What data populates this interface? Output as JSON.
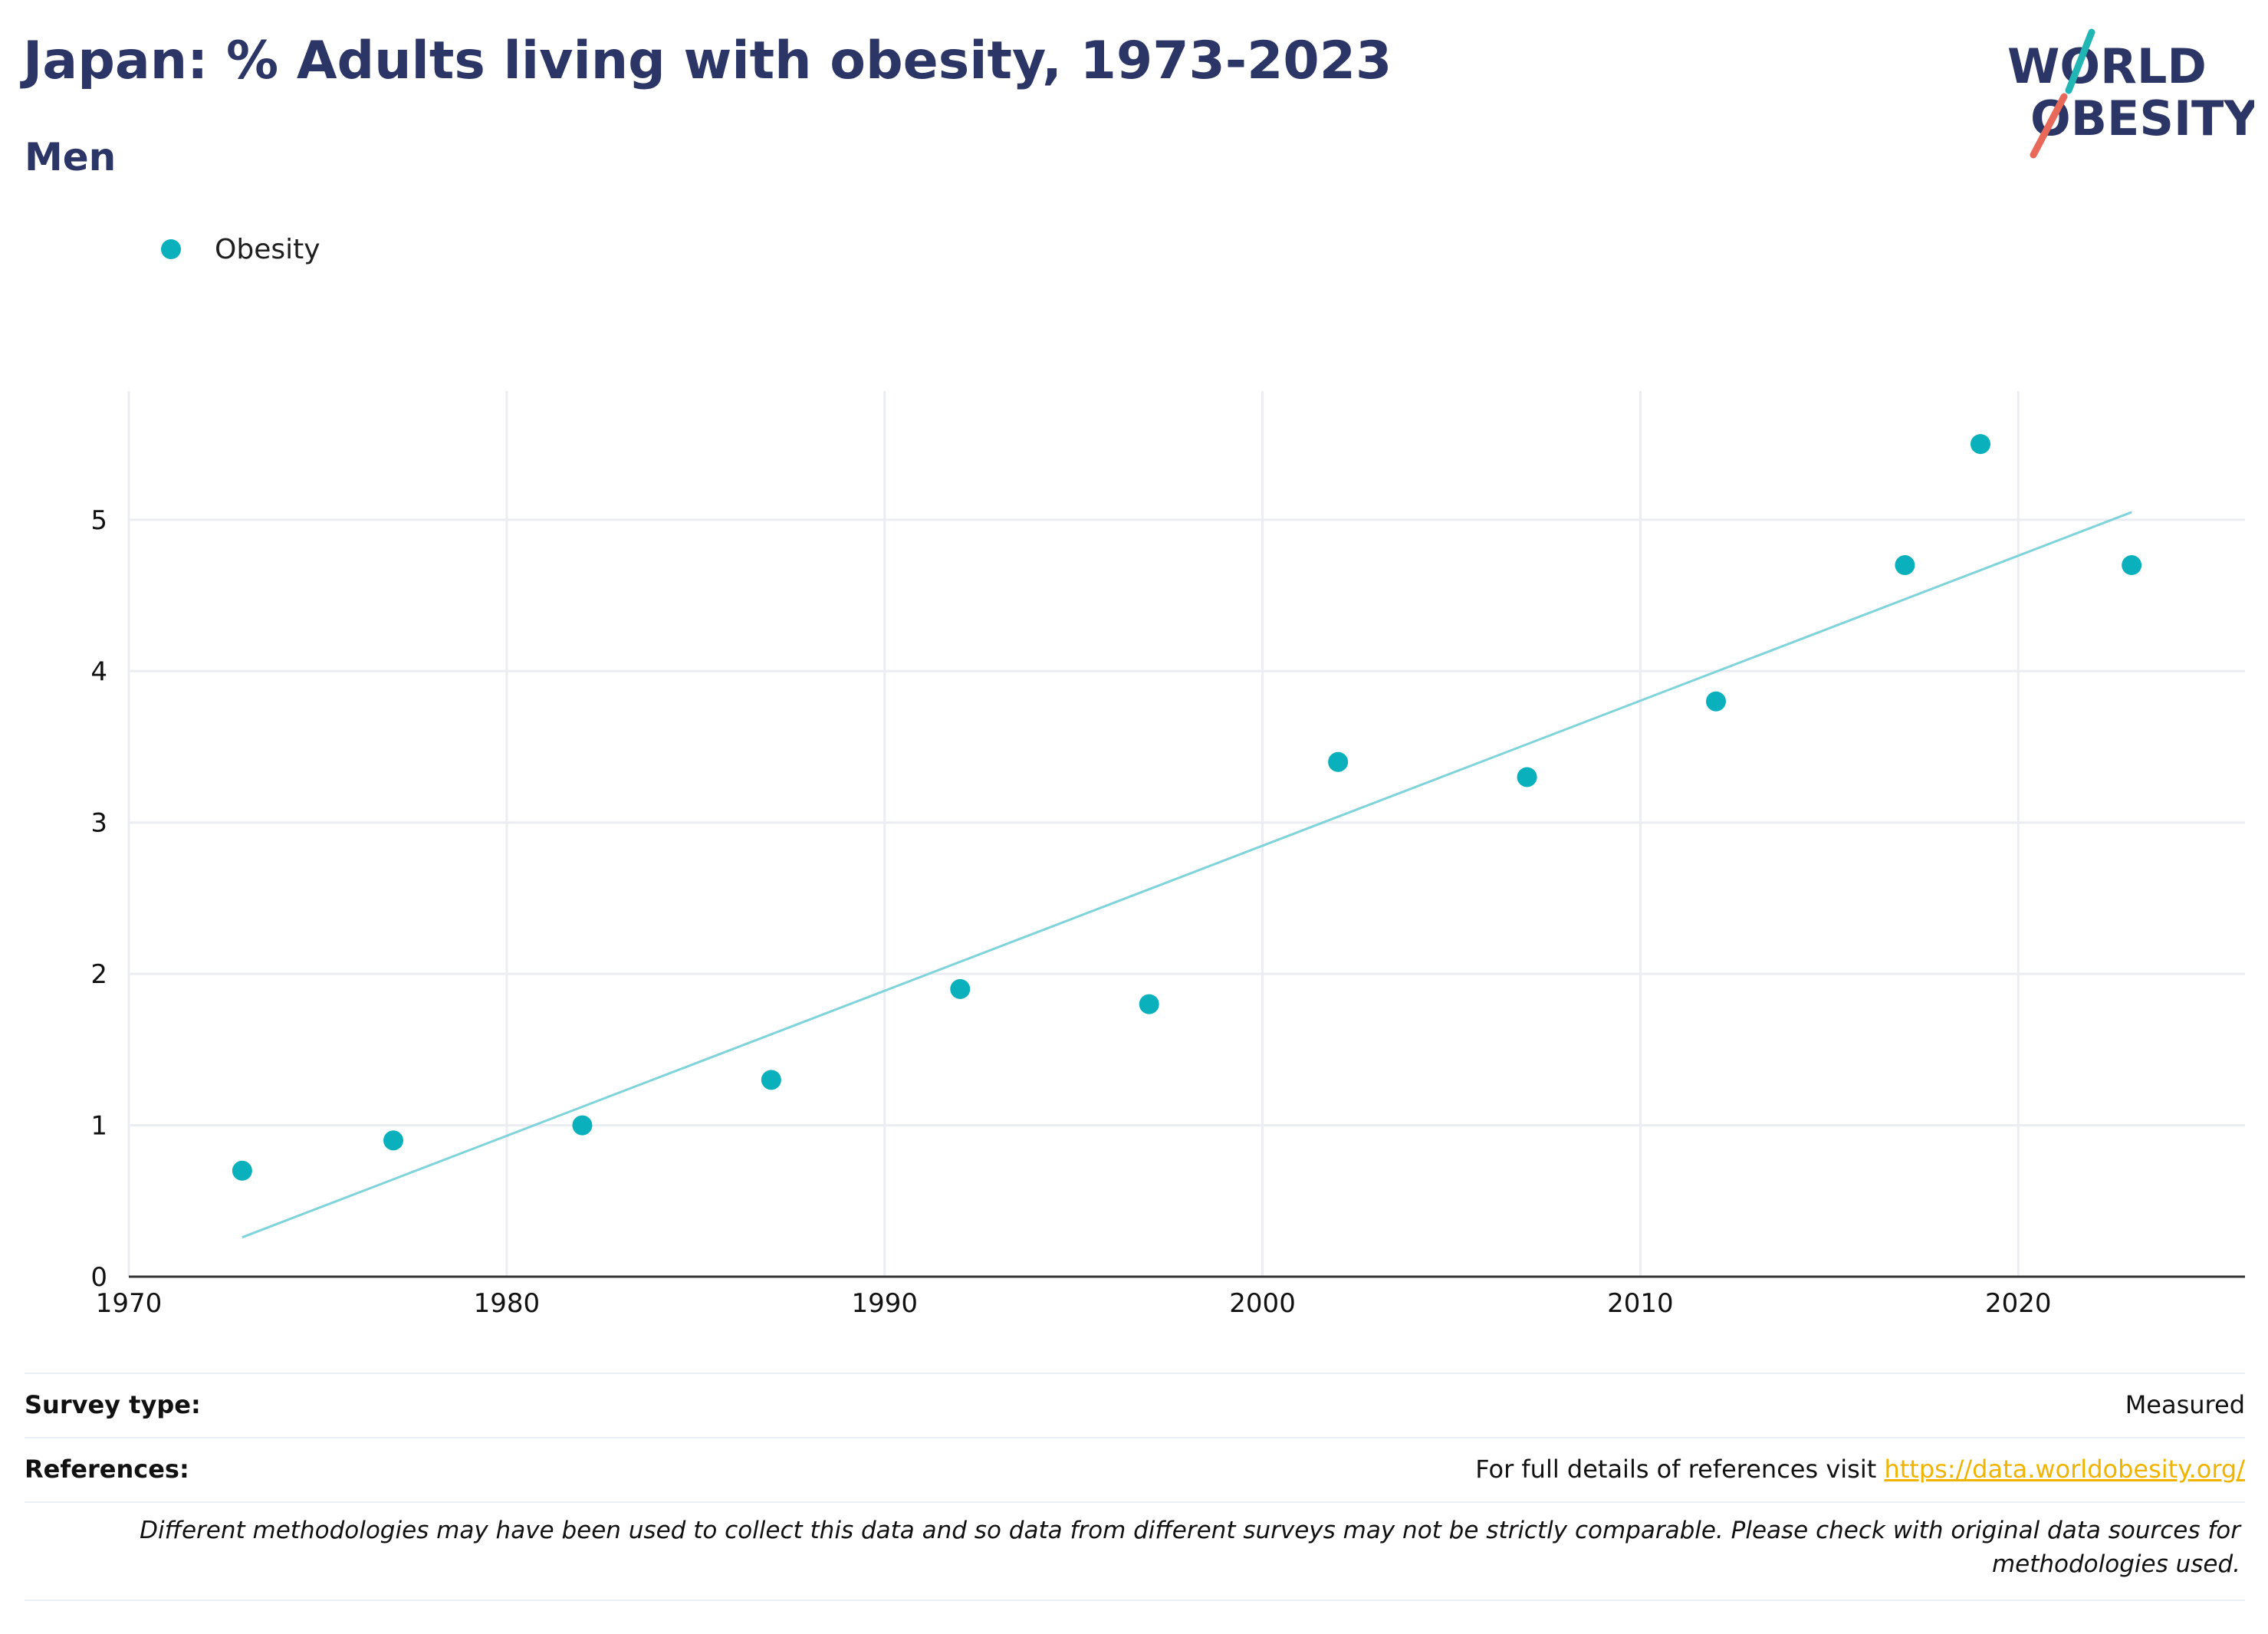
{
  "header": {
    "title": "Japan: % Adults living with obesity, 1973-2023",
    "subtitle": "Men"
  },
  "logo": {
    "line1": "WORLD",
    "line2": "OBESITY",
    "colors": {
      "text": "#2b3566",
      "slash_top": "#21b6b4",
      "slash_bottom": "#e8685a"
    }
  },
  "legend": {
    "label": "Obesity",
    "color": "#0ab1bc"
  },
  "chart_data": {
    "type": "scatter",
    "title": "Japan: % Adults living with obesity, 1973-2023",
    "subtitle": "Men",
    "xlabel": "",
    "ylabel": "",
    "xlim": [
      1970,
      2026
    ],
    "ylim": [
      0,
      5.85
    ],
    "x_ticks": [
      1970,
      1980,
      1990,
      2000,
      2010,
      2020
    ],
    "y_ticks": [
      0,
      1,
      2,
      3,
      4,
      5
    ],
    "grid": true,
    "legend_position": "top-left",
    "series": [
      {
        "name": "Obesity",
        "color": "#0ab1bc",
        "points": [
          {
            "x": 1973,
            "y": 0.7
          },
          {
            "x": 1977,
            "y": 0.9
          },
          {
            "x": 1982,
            "y": 1.0
          },
          {
            "x": 1987,
            "y": 1.3
          },
          {
            "x": 1992,
            "y": 1.9
          },
          {
            "x": 1997,
            "y": 1.8
          },
          {
            "x": 2002,
            "y": 3.4
          },
          {
            "x": 2007,
            "y": 3.3
          },
          {
            "x": 2012,
            "y": 3.8
          },
          {
            "x": 2017,
            "y": 4.7
          },
          {
            "x": 2019,
            "y": 5.5
          },
          {
            "x": 2023,
            "y": 4.7
          }
        ]
      }
    ],
    "trendline": {
      "color": "#7fd3da",
      "start": {
        "x": 1973,
        "y": 0.26
      },
      "end": {
        "x": 2023,
        "y": 5.05
      }
    }
  },
  "footer": {
    "survey_type_label": "Survey type:",
    "survey_type_value": "Measured",
    "references_label": "References:",
    "references_text": "For full details of references visit ",
    "references_link": "https://data.worldobesity.org/",
    "note": "Different methodologies may have been used to collect this data and so data from different surveys may not be strictly comparable. Please check with original data sources for methodologies used."
  }
}
